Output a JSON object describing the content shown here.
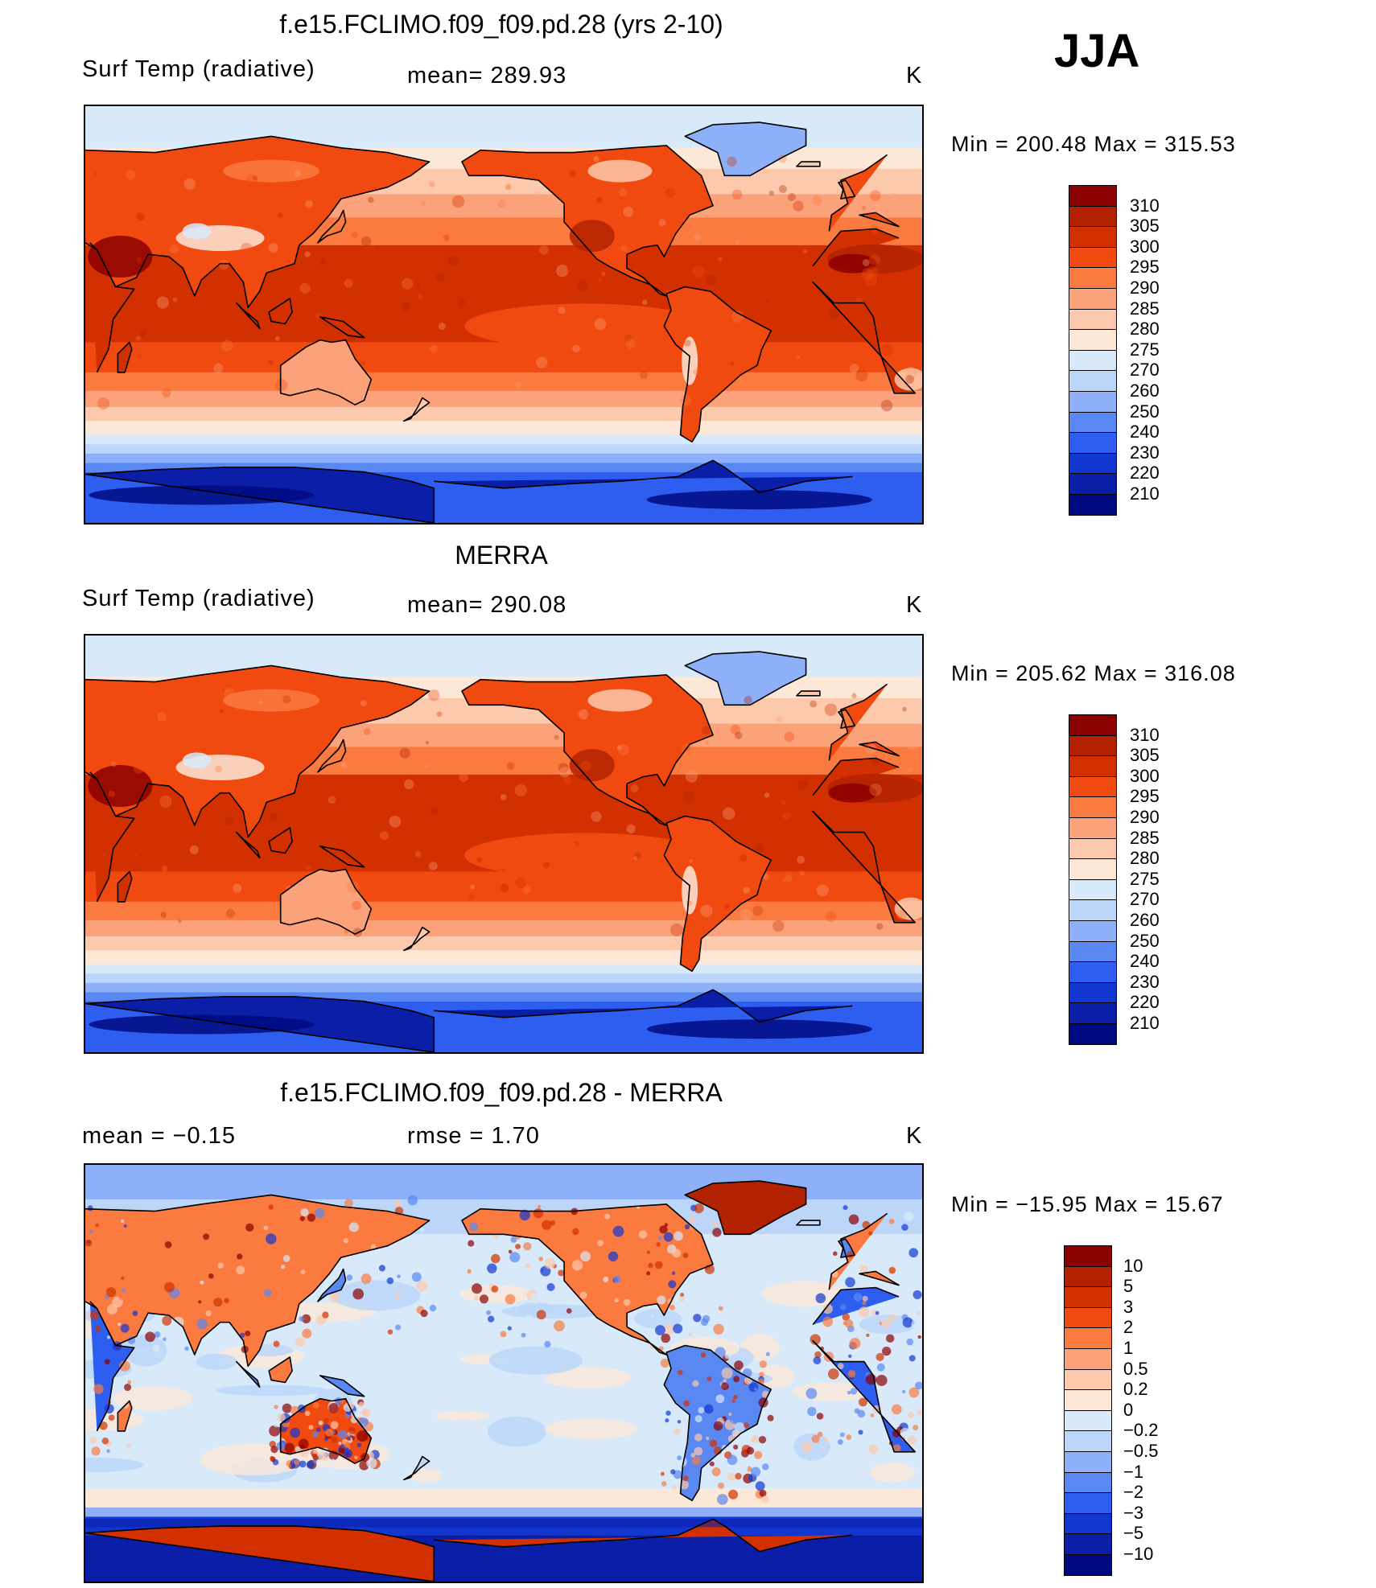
{
  "season": "JJA",
  "panels": [
    {
      "id": "model",
      "title": "f.e15.FCLIMO.f09_f09.pd.28 (yrs 2-10)",
      "left_label": "Surf Temp (radiative)",
      "mid_label": "mean=  289.93",
      "units": "K",
      "minmax": "Min  =  200.48  Max  =  315.53",
      "colorbar": {
        "labels": [
          "310",
          "305",
          "300",
          "295",
          "290",
          "285",
          "280",
          "275",
          "270",
          "260",
          "250",
          "240",
          "230",
          "220",
          "210"
        ],
        "colors": [
          "#8b0000",
          "#b22200",
          "#d23000",
          "#f04a10",
          "#fa7a40",
          "#fba27a",
          "#fcc9ac",
          "#fde8d8",
          "#d8eafa",
          "#bcd6fa",
          "#8db0f8",
          "#5a88f2",
          "#2d5ef0",
          "#1236d0",
          "#0a1ea8",
          "#000a80"
        ]
      },
      "palette": "sst"
    },
    {
      "id": "obs",
      "title": "MERRA",
      "left_label": "Surf Temp (radiative)",
      "mid_label": "mean=  290.08",
      "units": "K",
      "minmax": "Min  =  205.62  Max  =  316.08",
      "colorbar": {
        "labels": [
          "310",
          "305",
          "300",
          "295",
          "290",
          "285",
          "280",
          "275",
          "270",
          "260",
          "250",
          "240",
          "230",
          "220",
          "210"
        ],
        "colors": [
          "#8b0000",
          "#b22200",
          "#d23000",
          "#f04a10",
          "#fa7a40",
          "#fba27a",
          "#fcc9ac",
          "#fde8d8",
          "#d8eafa",
          "#bcd6fa",
          "#8db0f8",
          "#5a88f2",
          "#2d5ef0",
          "#1236d0",
          "#0a1ea8",
          "#000a80"
        ]
      },
      "palette": "sst"
    },
    {
      "id": "diff",
      "title": "f.e15.FCLIMO.f09_f09.pd.28 - MERRA",
      "left_label": "mean =    −0.15",
      "mid_label": "rmse =     1.70",
      "units": "K",
      "minmax": "Min  =  −15.95  Max  =    15.67",
      "colorbar": {
        "labels": [
          "10",
          "5",
          "3",
          "2",
          "1",
          "0.5",
          "0.2",
          "0",
          "−0.2",
          "−0.5",
          "−1",
          "−2",
          "−3",
          "−5",
          "−10"
        ],
        "colors": [
          "#8b0000",
          "#b22200",
          "#d23000",
          "#f04a10",
          "#fa7a40",
          "#fba27a",
          "#fcc9ac",
          "#fde8d8",
          "#d8eafa",
          "#bcd6fa",
          "#8db0f8",
          "#5a88f2",
          "#2d5ef0",
          "#1236d0",
          "#0a1ea8",
          "#000a80"
        ]
      },
      "palette": "diff"
    }
  ]
}
